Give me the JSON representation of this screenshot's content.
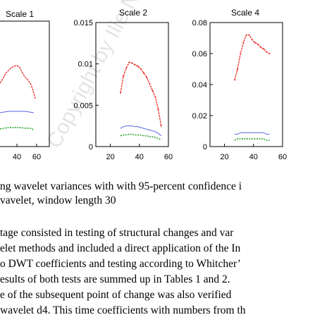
{
  "figure": {
    "panels": [
      {
        "title": "Scale 1",
        "xticks": [
          "40",
          "60"
        ],
        "yticks": []
      },
      {
        "title": "Scale 2",
        "xticks": [
          "20",
          "40",
          "60"
        ],
        "yticks": [
          "0.015",
          "0.01",
          "0.005",
          "0"
        ]
      },
      {
        "title": "Scale 4",
        "xticks": [
          "20",
          "40",
          "60"
        ],
        "yticks": [
          "0.08",
          "0.06",
          "0.04",
          "0.02",
          "0"
        ]
      }
    ],
    "colors": {
      "estimate": "#e8211b",
      "upper_bound": "#5a62e0",
      "lower_bound": "#1a9a1a"
    }
  },
  "chart_data": [
    {
      "type": "line",
      "title": "Scale 1",
      "x": [
        35,
        38,
        41,
        44,
        47,
        50
      ],
      "series": [
        {
          "values": [
            null,
            null,
            null,
            null,
            null,
            null
          ]
        },
        {
          "values": [
            null,
            null,
            null,
            null,
            null,
            null
          ]
        },
        {
          "values": [
            null,
            null,
            null,
            null,
            null,
            null
          ]
        }
      ],
      "xticks": [
        40,
        60
      ]
    },
    {
      "type": "line",
      "title": "Scale 2",
      "x": [
        27,
        29,
        31,
        33,
        35,
        37,
        39,
        41,
        43,
        45,
        47,
        49,
        51,
        53,
        55
      ],
      "series": [
        {
          "values": [
            0.0065,
            0.0085,
            0.0095,
            0.0102,
            0.0101,
            0.0099,
            0.0097,
            0.0094,
            0.0089,
            0.0084,
            0.0076,
            0.0068,
            0.006,
            0.0045,
            0.0025
          ]
        },
        {
          "values": [
            0.0022,
            0.0024,
            0.0025,
            0.0025,
            0.0025,
            0.0024,
            0.0024,
            0.0023,
            0.0022,
            0.0021,
            0.002,
            0.0019,
            0.0018,
            0.0016,
            0.0013
          ]
        },
        {
          "values": [
            0.0013,
            0.0014,
            0.0014,
            0.0015,
            0.0015,
            0.0014,
            0.0014,
            0.0014,
            0.0013,
            0.0013,
            0.0012,
            0.0012,
            0.0011,
            0.001,
            0.0008
          ]
        }
      ],
      "ylim": [
        0,
        0.015
      ],
      "xlim": [
        10,
        60
      ],
      "xticks": [
        20,
        40,
        60
      ],
      "yticks": [
        0,
        0.005,
        0.01,
        0.015
      ]
    },
    {
      "type": "line",
      "title": "Scale 4",
      "x": [
        27,
        29,
        31,
        33,
        35,
        37,
        39,
        41,
        43,
        45,
        47,
        49,
        51
      ],
      "series": [
        {
          "values": [
            0.043,
            0.05,
            0.06,
            0.067,
            0.072,
            0.072,
            0.069,
            0.067,
            0.066,
            0.064,
            0.063,
            0.061,
            0.06
          ]
        },
        {
          "values": [
            0.008,
            0.008,
            0.009,
            0.009,
            0.009,
            0.009,
            0.009,
            0.009,
            0.009,
            0.009,
            0.009,
            0.008,
            0.008
          ]
        },
        {
          "values": [
            0.004,
            0.005,
            0.005,
            0.005,
            0.005,
            0.005,
            0.005,
            0.005,
            0.005,
            0.005,
            0.005,
            0.004,
            0.004
          ]
        }
      ],
      "ylim": [
        0,
        0.08
      ],
      "xlim": [
        10,
        60
      ],
      "xticks": [
        20,
        40,
        60
      ],
      "yticks": [
        0,
        0.02,
        0.04,
        0.06,
        0.08
      ]
    }
  ],
  "caption": {
    "line1": "ng wavelet variances with with 95-percent confidence i",
    "line2": "vavelet, window length 30"
  },
  "body": {
    "lines": [
      "tage consisted in testing of structural changes and var",
      "elet methods and included a direct application of the In",
      "o DWT coefficients and testing according to Whitcher’",
      "esults of both tests are summed up in Tables 1 and 2.",
      "e of the subsequent point of change was also verified",
      "wavelet d4. This time coefficients with numbers from th"
    ]
  },
  "watermark": {
    "text": "Copyright by Ilie Nicusor"
  }
}
